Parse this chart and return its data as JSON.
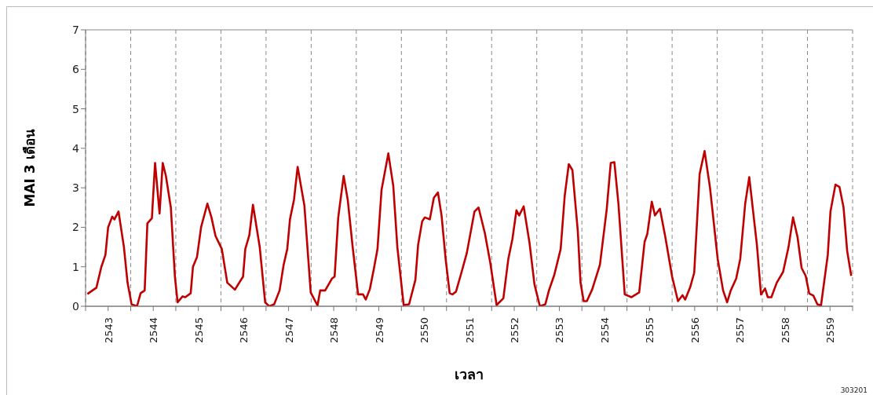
{
  "chart_data": {
    "type": "line",
    "xlabel": "เวลา",
    "ylabel": "MAI 3 เดือน",
    "annotations": [
      "303201"
    ],
    "xlim": [
      2542.5,
      2559.5
    ],
    "xticks": [
      {
        "value": 2542.5,
        "label": null
      },
      2543,
      {
        "value": 2543.5,
        "label": null
      },
      2544,
      {
        "value": 2544.5,
        "label": null
      },
      2545,
      {
        "value": 2545.5,
        "label": null
      },
      2546,
      {
        "value": 2546.5,
        "label": null
      },
      2547,
      {
        "value": 2547.5,
        "label": null
      },
      2548,
      {
        "value": 2548.5,
        "label": null
      },
      2549,
      {
        "value": 2549.5,
        "label": null
      },
      2550,
      {
        "value": 2550.5,
        "label": null
      },
      2551,
      {
        "value": 2551.5,
        "label": null
      },
      2552,
      {
        "value": 2552.5,
        "label": null
      },
      2553,
      {
        "value": 2553.5,
        "label": null
      },
      2554,
      {
        "value": 2554.5,
        "label": null
      },
      2555,
      {
        "value": 2555.5,
        "label": null
      },
      2556,
      {
        "value": 2556.5,
        "label": null
      },
      2557,
      {
        "value": 2557.5,
        "label": null
      },
      2558,
      {
        "value": 2558.5,
        "label": null
      },
      2559,
      {
        "value": 2559.5,
        "label": null
      }
    ],
    "ylim": [
      0,
      7
    ],
    "yticks": [
      0,
      1,
      2,
      3,
      4,
      5,
      6,
      7
    ],
    "grid": true,
    "marker": "none",
    "line_style": "solid",
    "series": [
      {
        "color": "#c00000",
        "x": [
          2542.54,
          2542.74,
          2542.85,
          2542.94,
          2543.0,
          2543.09,
          2543.14,
          2543.23,
          2543.35,
          2543.43,
          2543.52,
          2543.64,
          2543.72,
          2543.81,
          2543.87,
          2543.97,
          2544.04,
          2544.14,
          2544.21,
          2544.28,
          2544.39,
          2544.48,
          2544.54,
          2544.65,
          2544.71,
          2544.83,
          2544.88,
          2544.97,
          2545.06,
          2545.2,
          2545.29,
          2545.38,
          2545.52,
          2545.64,
          2545.81,
          2545.99,
          2546.04,
          2546.13,
          2546.21,
          2546.36,
          2546.48,
          2546.57,
          2546.68,
          2546.8,
          2546.89,
          2546.97,
          2547.03,
          2547.12,
          2547.2,
          2547.35,
          2547.49,
          2547.64,
          2547.7,
          2547.81,
          2547.96,
          2548.02,
          2548.1,
          2548.22,
          2548.31,
          2548.42,
          2548.54,
          2548.65,
          2548.71,
          2548.8,
          2548.89,
          2548.97,
          2549.06,
          2549.21,
          2549.32,
          2549.41,
          2549.55,
          2549.67,
          2549.81,
          2549.87,
          2549.96,
          2550.02,
          2550.13,
          2550.22,
          2550.31,
          2550.39,
          2550.48,
          2550.57,
          2550.63,
          2550.71,
          2550.83,
          2550.95,
          2551.12,
          2551.21,
          2551.35,
          2551.47,
          2551.61,
          2551.76,
          2551.87,
          2551.96,
          2552.05,
          2552.11,
          2552.21,
          2552.34,
          2552.45,
          2552.57,
          2552.69,
          2552.77,
          2552.89,
          2553.03,
          2553.12,
          2553.21,
          2553.29,
          2553.41,
          2553.47,
          2553.54,
          2553.61,
          2553.73,
          2553.9,
          2554.05,
          2554.14,
          2554.22,
          2554.31,
          2554.45,
          2554.6,
          2554.77,
          2554.89,
          2554.95,
          2555.05,
          2555.12,
          2555.23,
          2555.35,
          2555.5,
          2555.63,
          2555.73,
          2555.79,
          2555.9,
          2555.99,
          2556.11,
          2556.22,
          2556.34,
          2556.51,
          2556.63,
          2556.72,
          2556.8,
          2556.92,
          2557.01,
          2557.12,
          2557.21,
          2557.33,
          2557.38,
          2557.47,
          2557.56,
          2557.62,
          2557.7,
          2557.82,
          2557.96,
          2558.08,
          2558.18,
          2558.28,
          2558.37,
          2558.46,
          2558.54,
          2558.63,
          2558.72,
          2558.8,
          2558.95,
          2559.01,
          2559.12,
          2559.21,
          2559.3,
          2559.38,
          2559.47
        ],
        "values": [
          0.31,
          0.47,
          1.0,
          1.3,
          2.0,
          2.27,
          2.2,
          2.4,
          1.5,
          0.6,
          0.05,
          0.0,
          0.33,
          0.4,
          2.1,
          2.23,
          3.63,
          2.35,
          3.63,
          3.3,
          2.5,
          0.75,
          0.1,
          0.25,
          0.23,
          0.33,
          1.0,
          1.25,
          2.0,
          2.6,
          2.25,
          1.78,
          1.45,
          0.6,
          0.42,
          0.75,
          1.45,
          1.8,
          2.57,
          1.5,
          0.1,
          0.0,
          0.05,
          0.4,
          1.05,
          1.45,
          2.2,
          2.7,
          3.53,
          2.55,
          0.35,
          0.02,
          0.4,
          0.4,
          0.7,
          0.75,
          2.25,
          3.3,
          2.7,
          1.5,
          0.3,
          0.3,
          0.17,
          0.43,
          0.95,
          1.45,
          2.95,
          3.87,
          3.05,
          1.5,
          0.03,
          0.05,
          0.67,
          1.55,
          2.15,
          2.25,
          2.2,
          2.75,
          2.88,
          2.3,
          1.2,
          0.33,
          0.3,
          0.37,
          0.85,
          1.35,
          2.4,
          2.5,
          1.85,
          1.1,
          0.03,
          0.2,
          1.2,
          1.7,
          2.43,
          2.3,
          2.53,
          1.6,
          0.55,
          0.0,
          0.05,
          0.4,
          0.8,
          1.45,
          2.8,
          3.6,
          3.45,
          1.9,
          0.6,
          0.13,
          0.13,
          0.43,
          1.05,
          2.45,
          3.63,
          3.65,
          2.6,
          0.3,
          0.23,
          0.35,
          1.63,
          1.83,
          2.65,
          2.3,
          2.47,
          1.75,
          0.75,
          0.13,
          0.28,
          0.17,
          0.48,
          0.85,
          3.35,
          3.93,
          3.0,
          1.2,
          0.4,
          0.1,
          0.4,
          0.7,
          1.2,
          2.6,
          3.27,
          2.05,
          1.55,
          0.3,
          0.45,
          0.23,
          0.23,
          0.6,
          0.87,
          1.5,
          2.25,
          1.75,
          0.97,
          0.77,
          0.32,
          0.27,
          0.05,
          0.02,
          1.3,
          2.4,
          3.08,
          3.02,
          2.5,
          1.4,
          0.77
        ]
      }
    ]
  }
}
